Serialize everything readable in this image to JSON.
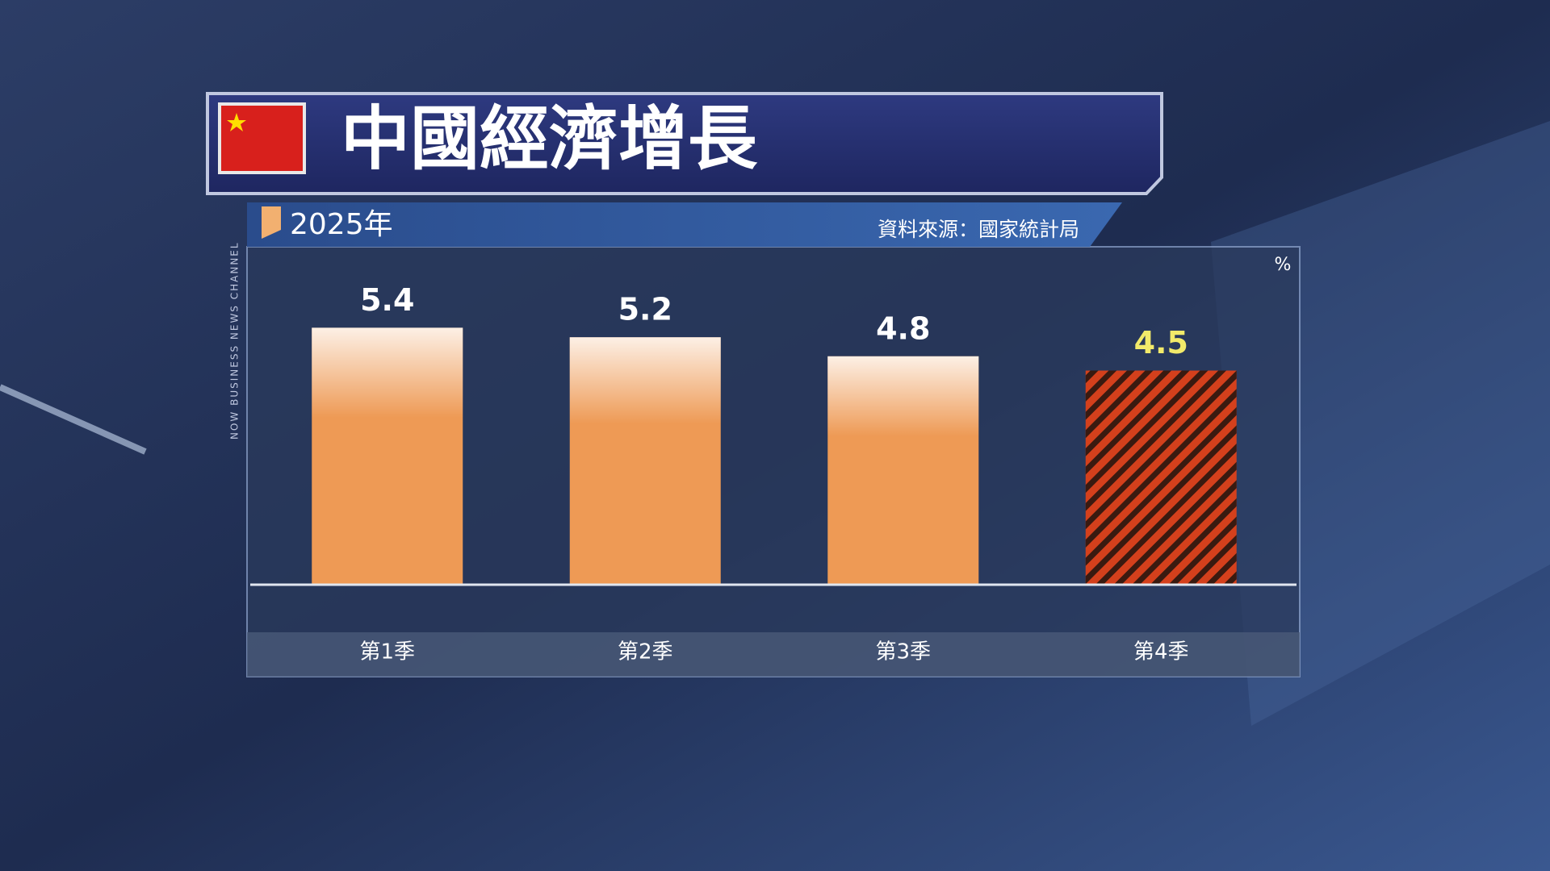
{
  "chart_data": {
    "type": "bar",
    "title": "中國經濟增長",
    "subtitle": "2025年",
    "source": "資料來源：國家統計局",
    "channel": "NOW BUSINESS NEWS CHANNEL",
    "unit_label": "%",
    "categories": [
      "第1季",
      "第2季",
      "第3季",
      "第4季"
    ],
    "values": [
      5.4,
      5.2,
      4.8,
      4.5
    ],
    "colors": [
      "#ee9a55",
      "#ee9a55",
      "#ee9a55",
      "#d4401c"
    ],
    "hatch": [
      null,
      null,
      null,
      "#3a1a10"
    ],
    "label_colors": [
      "#ffffff",
      "#ffffff",
      "#ffffff",
      "#f2ea6a"
    ],
    "ylim": [
      0,
      7
    ]
  }
}
